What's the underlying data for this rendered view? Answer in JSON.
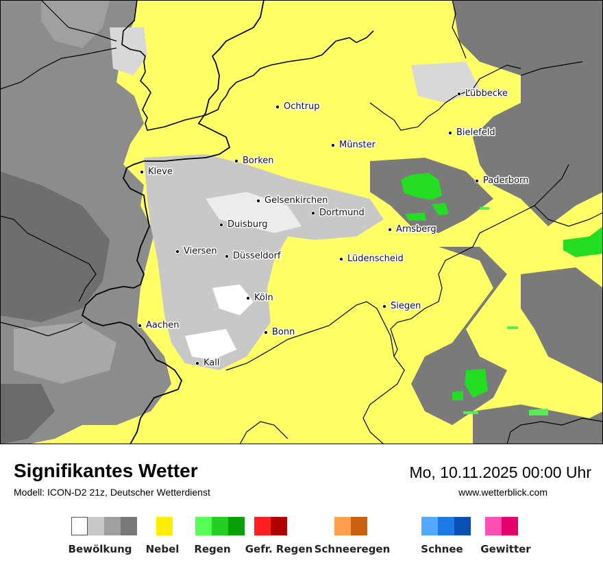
{
  "map": {
    "cities": [
      {
        "name": "Ochtrup"
      },
      {
        "name": "Lübbecke"
      },
      {
        "name": "Bielefeld"
      },
      {
        "name": "Münster"
      },
      {
        "name": "Borken"
      },
      {
        "name": "Kleve"
      },
      {
        "name": "Paderborn"
      },
      {
        "name": "Gelsenkirchen"
      },
      {
        "name": "Dortmund"
      },
      {
        "name": "Duisburg"
      },
      {
        "name": "Arnsberg"
      },
      {
        "name": "Viersen"
      },
      {
        "name": "Düsseldorf"
      },
      {
        "name": "Lüdenscheid"
      },
      {
        "name": "Köln"
      },
      {
        "name": "Siegen"
      },
      {
        "name": "Aachen"
      },
      {
        "name": "Bonn"
      },
      {
        "name": "Kall"
      }
    ]
  },
  "footer": {
    "title": "Signifikantes Wetter",
    "model": "Modell: ICON-D2 21z, Deutscher Wetterdienst",
    "datetime": "Mo, 10.11.2025 00:00 Uhr",
    "website": "www.wetterblick.com"
  },
  "legend": [
    {
      "label": "Bewölkung",
      "colors": [
        "#ffffff",
        "#c8c8c8",
        "#a0a0a0",
        "#787878"
      ]
    },
    {
      "label": "Nebel",
      "colors": [
        "#ffee00"
      ]
    },
    {
      "label": "Regen",
      "colors": [
        "#55ff55",
        "#22d022",
        "#0aa00a"
      ]
    },
    {
      "label": "Gefr. Regen",
      "colors": [
        "#ff2020",
        "#b00000"
      ]
    },
    {
      "label": "Schneeregen",
      "colors": [
        "#ffa050",
        "#cc6010"
      ]
    },
    {
      "label": "Schnee",
      "colors": [
        "#50a8ff",
        "#1e78e6",
        "#0a50b4"
      ]
    },
    {
      "label": "Gewitter",
      "colors": [
        "#ff50b4",
        "#e6006e"
      ]
    }
  ],
  "colors": {
    "fog_yellow": "#ffff66",
    "cloud_white": "#ffffff",
    "cloud_light": "#c8c8c8",
    "cloud_mid": "#a0a0a0",
    "cloud_dark": "#787878",
    "rain_light": "#55ff55",
    "rain_mid": "#22d022",
    "border": "#000000"
  }
}
